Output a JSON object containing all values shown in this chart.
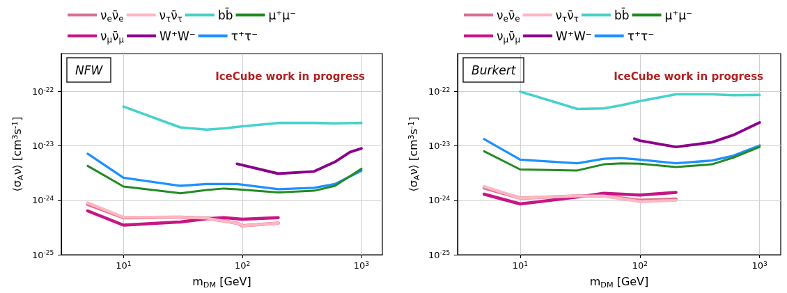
{
  "chart_data": [
    {
      "type": "line",
      "title": "NFW",
      "annotations": [
        "IceCube work in progress"
      ],
      "xlabel": "m$_{DM}$ [GeV]",
      "ylabel": "⟨σ$_{A}$ν⟩ [cm$^{3}$s$^{-1}$]",
      "log": "xy",
      "grid": true,
      "legend": "top",
      "marker": "none",
      "line_style": "solid",
      "xlim": [
        3,
        1500
      ],
      "xticks": [
        {
          "value": 10,
          "label": "10$^{1}$"
        },
        {
          "value": 100,
          "label": "10$^{2}$"
        },
        {
          "value": 1000,
          "label": "10$^{3}$"
        }
      ],
      "ylim": [
        1e-25,
        5e-22
      ],
      "yticks": [
        {
          "value": 1e-25,
          "label": "10$^{-25}$"
        },
        {
          "value": 1e-24,
          "label": "10$^{-24}$"
        },
        {
          "value": 1e-23,
          "label": "10$^{-23}$"
        },
        {
          "value": 1e-22,
          "label": "10$^{-22}$"
        }
      ],
      "series": [
        {
          "name": "ν$_{e}$ν̄$_{e}$",
          "color": "#db7093",
          "x": [
            5,
            10,
            30,
            50,
            90,
            100,
            200
          ],
          "values": [
            8.5e-25,
            4.8e-25,
            4.9e-25,
            4.7e-25,
            3.8e-25,
            3.4e-25,
            3.8e-25
          ]
        },
        {
          "name": "ν$_{μ}$ν̄$_{μ}$",
          "color": "#c71585",
          "x": [
            5,
            10,
            30,
            50,
            70,
            100,
            200
          ],
          "values": [
            6.4e-25,
            3.5e-25,
            4e-25,
            4.6e-25,
            4.8e-25,
            4.5e-25,
            4.8e-25
          ]
        },
        {
          "name": "ν$_{τ}$ν̄$_{τ}$",
          "color": "#ffb6c1",
          "x": [
            5,
            10,
            30,
            50,
            90,
            100,
            200
          ],
          "values": [
            9e-25,
            4.9e-25,
            4.9e-25,
            4.7e-25,
            3.8e-25,
            3.4e-25,
            3.8e-25
          ]
        },
        {
          "name": "W⁺W⁻",
          "color": "#8b008b",
          "x": [
            90,
            200,
            400,
            600,
            800,
            1000
          ],
          "values": [
            4.7e-24,
            3.1e-24,
            3.4e-24,
            5.1e-24,
            7.7e-24,
            9e-24
          ]
        },
        {
          "name": "bb̄",
          "color": "#48d1cc",
          "x": [
            10,
            30,
            50,
            70,
            100,
            200,
            400,
            600,
            1000
          ],
          "values": [
            5.3e-23,
            2.2e-23,
            2e-23,
            2.1e-23,
            2.3e-23,
            2.65e-23,
            2.65e-23,
            2.6e-23,
            2.65e-23
          ]
        },
        {
          "name": "τ⁺τ⁻",
          "color": "#1e90ff",
          "x": [
            5,
            10,
            30,
            50,
            70,
            90,
            200,
            400,
            600,
            1000
          ],
          "values": [
            7.2e-24,
            2.6e-24,
            1.85e-24,
            2e-24,
            2e-24,
            2e-24,
            1.6e-24,
            1.7e-24,
            2e-24,
            3.5e-24
          ]
        },
        {
          "name": "μ⁺μ⁻",
          "color": "#228b22",
          "x": [
            5,
            10,
            30,
            50,
            70,
            90,
            200,
            400,
            600,
            1000
          ],
          "values": [
            4.3e-24,
            1.8e-24,
            1.35e-24,
            1.55e-24,
            1.65e-24,
            1.6e-24,
            1.4e-24,
            1.5e-24,
            1.85e-24,
            3.8e-24
          ]
        }
      ]
    },
    {
      "type": "line",
      "title": "Burkert",
      "annotations": [
        "IceCube work in progress"
      ],
      "xlabel": "m$_{DM}$ [GeV]",
      "ylabel": "⟨σ$_{A}$ν⟩ [cm$^{3}$s$^{-1}$]",
      "log": "xy",
      "grid": true,
      "legend": "top",
      "marker": "none",
      "line_style": "solid",
      "xlim": [
        3,
        1500
      ],
      "xticks": [
        {
          "value": 10,
          "label": "10$^{1}$"
        },
        {
          "value": 100,
          "label": "10$^{2}$"
        },
        {
          "value": 1000,
          "label": "10$^{3}$"
        }
      ],
      "ylim": [
        1e-25,
        5e-22
      ],
      "yticks": [
        {
          "value": 1e-25,
          "label": "10$^{-25}$"
        },
        {
          "value": 1e-24,
          "label": "10$^{-24}$"
        },
        {
          "value": 1e-23,
          "label": "10$^{-23}$"
        },
        {
          "value": 1e-22,
          "label": "10$^{-22}$"
        }
      ],
      "series": [
        {
          "name": "ν$_{e}$ν̄$_{e}$",
          "color": "#db7093",
          "x": [
            5,
            10,
            30,
            50,
            100,
            200
          ],
          "values": [
            1.7e-24,
            1.1e-24,
            1.2e-24,
            1.2e-24,
            1e-24,
            1.05e-24
          ]
        },
        {
          "name": "ν$_{μ}$ν̄$_{μ}$",
          "color": "#c71585",
          "x": [
            5,
            10,
            30,
            50,
            100,
            200
          ],
          "values": [
            1.3e-24,
            8.6e-25,
            1.15e-24,
            1.35e-24,
            1.25e-24,
            1.4e-24
          ]
        },
        {
          "name": "ν$_{τ}$ν̄$_{τ}$",
          "color": "#ffb6c1",
          "x": [
            5,
            10,
            30,
            50,
            100,
            200
          ],
          "values": [
            1.8e-24,
            1.1e-24,
            1.2e-24,
            1.2e-24,
            9.5e-25,
            1e-24
          ]
        },
        {
          "name": "W⁺W⁻",
          "color": "#8b008b",
          "x": [
            90,
            100,
            200,
            400,
            600,
            1000
          ],
          "values": [
            1.36e-23,
            1.25e-23,
            9.6e-24,
            1.17e-23,
            1.58e-23,
            2.7e-23
          ]
        },
        {
          "name": "bb̄",
          "color": "#48d1cc",
          "x": [
            10,
            30,
            50,
            70,
            100,
            200,
            400,
            600,
            1000
          ],
          "values": [
            1e-22,
            4.8e-23,
            4.9e-23,
            5.6e-23,
            6.7e-23,
            8.9e-23,
            8.9e-23,
            8.6e-23,
            8.7e-23
          ]
        },
        {
          "name": "τ⁺τ⁻",
          "color": "#1e90ff",
          "x": [
            5,
            10,
            30,
            50,
            70,
            100,
            200,
            400,
            600,
            1000
          ],
          "values": [
            1.34e-23,
            5.6e-24,
            4.8e-24,
            5.8e-24,
            6e-24,
            5.6e-24,
            4.8e-24,
            5.4e-24,
            6.6e-24,
            1.02e-23
          ]
        },
        {
          "name": "μ⁺μ⁻",
          "color": "#228b22",
          "x": [
            5,
            10,
            30,
            50,
            70,
            100,
            200,
            400,
            600,
            1000
          ],
          "values": [
            8e-24,
            3.7e-24,
            3.55e-24,
            4.6e-24,
            4.8e-24,
            4.7e-24,
            4.1e-24,
            4.6e-24,
            6.1e-24,
            9.6e-24
          ]
        }
      ]
    }
  ]
}
